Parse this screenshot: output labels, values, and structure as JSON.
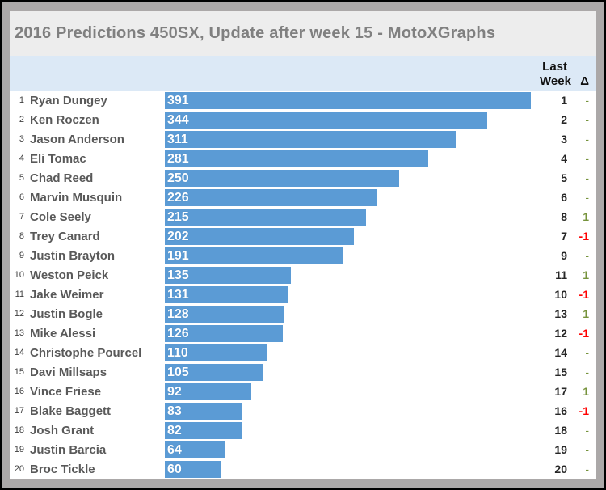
{
  "window": {
    "title": "2016 Predictions 450SX, Update after week 15 - MotoXGraphs"
  },
  "table": {
    "header": {
      "last_line1": "Last",
      "last_line2": "Week",
      "delta": "Δ"
    }
  },
  "colors": {
    "bar": "#5b9bd5",
    "header_band": "#dce9f6",
    "title_text": "#808080",
    "name_text": "#595959",
    "delta_positive": "#76933c",
    "delta_negative": "#ff0000",
    "frame": "#aba8a8"
  },
  "chart_data": {
    "type": "bar",
    "orientation": "horizontal",
    "title": "2016 Predictions 450SX, Update after week 15 - MotoXGraphs",
    "xlabel": "",
    "ylabel": "",
    "value_axis_range": [
      0,
      400
    ],
    "grid": false,
    "legend": false,
    "series_label": "Points",
    "categories": [
      "Ryan Dungey",
      "Ken Roczen",
      "Jason Anderson",
      "Eli Tomac",
      "Chad Reed",
      "Marvin Musquin",
      "Cole Seely",
      "Trey Canard",
      "Justin Brayton",
      "Weston Peick",
      "Jake Weimer",
      "Justin Bogle",
      "Mike Alessi",
      "Christophe Pourcel",
      "Davi Millsaps",
      "Vince Friese",
      "Blake Baggett",
      "Josh Grant",
      "Justin Barcia",
      "Broc Tickle"
    ],
    "values": [
      391,
      344,
      311,
      281,
      250,
      226,
      215,
      202,
      191,
      135,
      131,
      128,
      126,
      110,
      105,
      92,
      83,
      82,
      64,
      60
    ],
    "rows": [
      {
        "rank": 1,
        "rider": "Ryan Dungey",
        "points": 391,
        "last_week": 1,
        "delta": "-"
      },
      {
        "rank": 2,
        "rider": "Ken Roczen",
        "points": 344,
        "last_week": 2,
        "delta": "-"
      },
      {
        "rank": 3,
        "rider": "Jason Anderson",
        "points": 311,
        "last_week": 3,
        "delta": "-"
      },
      {
        "rank": 4,
        "rider": "Eli Tomac",
        "points": 281,
        "last_week": 4,
        "delta": "-"
      },
      {
        "rank": 5,
        "rider": "Chad Reed",
        "points": 250,
        "last_week": 5,
        "delta": "-"
      },
      {
        "rank": 6,
        "rider": "Marvin Musquin",
        "points": 226,
        "last_week": 6,
        "delta": "-"
      },
      {
        "rank": 7,
        "rider": "Cole Seely",
        "points": 215,
        "last_week": 8,
        "delta": "1"
      },
      {
        "rank": 8,
        "rider": "Trey Canard",
        "points": 202,
        "last_week": 7,
        "delta": "-1"
      },
      {
        "rank": 9,
        "rider": "Justin Brayton",
        "points": 191,
        "last_week": 9,
        "delta": "-"
      },
      {
        "rank": 10,
        "rider": "Weston Peick",
        "points": 135,
        "last_week": 11,
        "delta": "1"
      },
      {
        "rank": 11,
        "rider": "Jake Weimer",
        "points": 131,
        "last_week": 10,
        "delta": "-1"
      },
      {
        "rank": 12,
        "rider": "Justin Bogle",
        "points": 128,
        "last_week": 13,
        "delta": "1"
      },
      {
        "rank": 13,
        "rider": "Mike Alessi",
        "points": 126,
        "last_week": 12,
        "delta": "-1"
      },
      {
        "rank": 14,
        "rider": "Christophe Pourcel",
        "points": 110,
        "last_week": 14,
        "delta": "-"
      },
      {
        "rank": 15,
        "rider": "Davi Millsaps",
        "points": 105,
        "last_week": 15,
        "delta": "-"
      },
      {
        "rank": 16,
        "rider": "Vince Friese",
        "points": 92,
        "last_week": 17,
        "delta": "1"
      },
      {
        "rank": 17,
        "rider": "Blake Baggett",
        "points": 83,
        "last_week": 16,
        "delta": "-1"
      },
      {
        "rank": 18,
        "rider": "Josh Grant",
        "points": 82,
        "last_week": 18,
        "delta": "-"
      },
      {
        "rank": 19,
        "rider": "Justin Barcia",
        "points": 64,
        "last_week": 19,
        "delta": "-"
      },
      {
        "rank": 20,
        "rider": "Broc Tickle",
        "points": 60,
        "last_week": 20,
        "delta": "-"
      }
    ]
  }
}
